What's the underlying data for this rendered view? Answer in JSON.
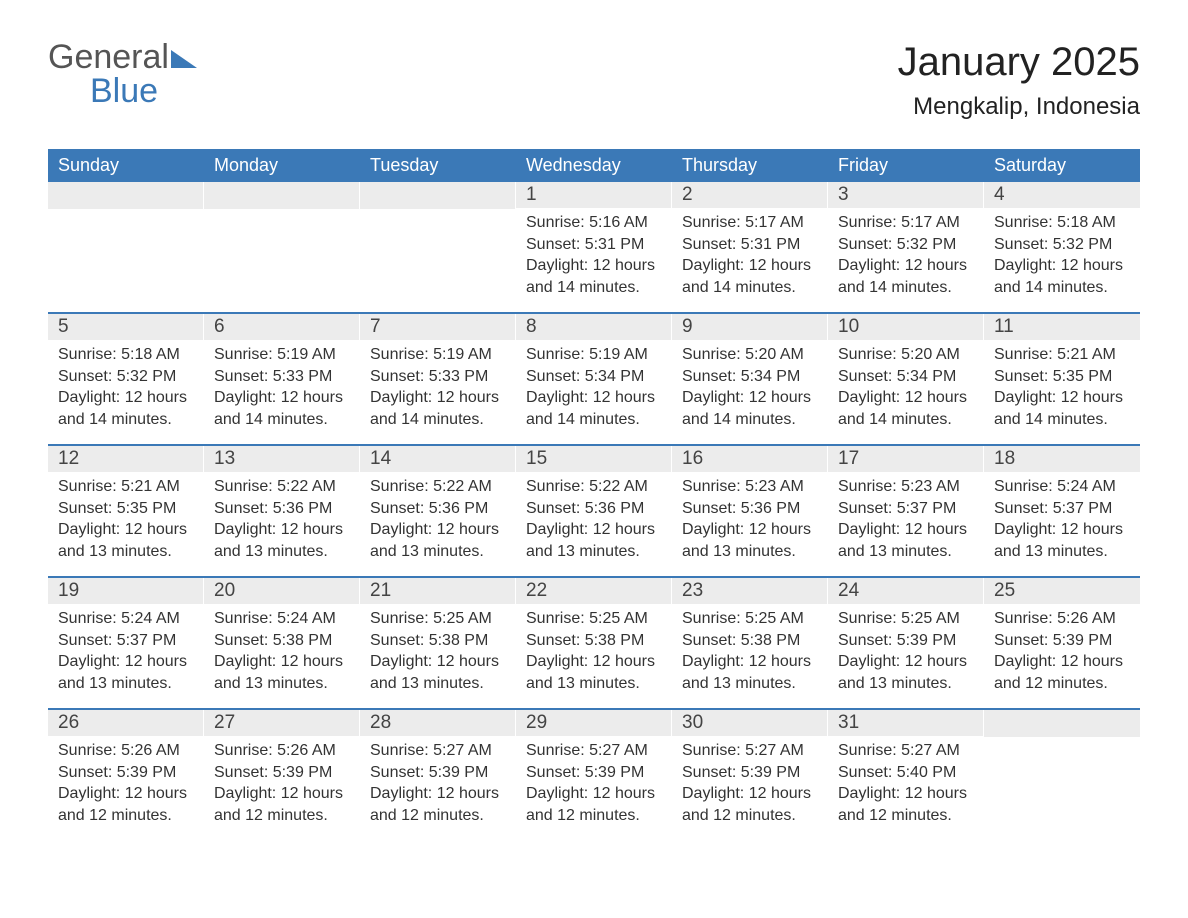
{
  "brand": {
    "line1": "General",
    "line2": "Blue"
  },
  "title": {
    "month": "January 2025",
    "location": "Mengkalip, Indonesia"
  },
  "colors": {
    "header_bg": "#3b79b7",
    "header_text": "#ffffff",
    "daynum_bg": "#ececec",
    "row_divider": "#3b79b7",
    "text": "#333333",
    "page_bg": "#ffffff"
  },
  "typography": {
    "title_fontsize": 40,
    "location_fontsize": 24,
    "dayheader_fontsize": 18,
    "daynum_fontsize": 19,
    "body_fontsize": 16
  },
  "layout": {
    "columns": 7,
    "rows": 5
  },
  "day_headers": [
    "Sunday",
    "Monday",
    "Tuesday",
    "Wednesday",
    "Thursday",
    "Friday",
    "Saturday"
  ],
  "weeks": [
    [
      {
        "empty": true
      },
      {
        "empty": true
      },
      {
        "empty": true
      },
      {
        "num": "1",
        "sunrise": "Sunrise: 5:16 AM",
        "sunset": "Sunset: 5:31 PM",
        "day1": "Daylight: 12 hours",
        "day2": "and 14 minutes."
      },
      {
        "num": "2",
        "sunrise": "Sunrise: 5:17 AM",
        "sunset": "Sunset: 5:31 PM",
        "day1": "Daylight: 12 hours",
        "day2": "and 14 minutes."
      },
      {
        "num": "3",
        "sunrise": "Sunrise: 5:17 AM",
        "sunset": "Sunset: 5:32 PM",
        "day1": "Daylight: 12 hours",
        "day2": "and 14 minutes."
      },
      {
        "num": "4",
        "sunrise": "Sunrise: 5:18 AM",
        "sunset": "Sunset: 5:32 PM",
        "day1": "Daylight: 12 hours",
        "day2": "and 14 minutes."
      }
    ],
    [
      {
        "num": "5",
        "sunrise": "Sunrise: 5:18 AM",
        "sunset": "Sunset: 5:32 PM",
        "day1": "Daylight: 12 hours",
        "day2": "and 14 minutes."
      },
      {
        "num": "6",
        "sunrise": "Sunrise: 5:19 AM",
        "sunset": "Sunset: 5:33 PM",
        "day1": "Daylight: 12 hours",
        "day2": "and 14 minutes."
      },
      {
        "num": "7",
        "sunrise": "Sunrise: 5:19 AM",
        "sunset": "Sunset: 5:33 PM",
        "day1": "Daylight: 12 hours",
        "day2": "and 14 minutes."
      },
      {
        "num": "8",
        "sunrise": "Sunrise: 5:19 AM",
        "sunset": "Sunset: 5:34 PM",
        "day1": "Daylight: 12 hours",
        "day2": "and 14 minutes."
      },
      {
        "num": "9",
        "sunrise": "Sunrise: 5:20 AM",
        "sunset": "Sunset: 5:34 PM",
        "day1": "Daylight: 12 hours",
        "day2": "and 14 minutes."
      },
      {
        "num": "10",
        "sunrise": "Sunrise: 5:20 AM",
        "sunset": "Sunset: 5:34 PM",
        "day1": "Daylight: 12 hours",
        "day2": "and 14 minutes."
      },
      {
        "num": "11",
        "sunrise": "Sunrise: 5:21 AM",
        "sunset": "Sunset: 5:35 PM",
        "day1": "Daylight: 12 hours",
        "day2": "and 14 minutes."
      }
    ],
    [
      {
        "num": "12",
        "sunrise": "Sunrise: 5:21 AM",
        "sunset": "Sunset: 5:35 PM",
        "day1": "Daylight: 12 hours",
        "day2": "and 13 minutes."
      },
      {
        "num": "13",
        "sunrise": "Sunrise: 5:22 AM",
        "sunset": "Sunset: 5:36 PM",
        "day1": "Daylight: 12 hours",
        "day2": "and 13 minutes."
      },
      {
        "num": "14",
        "sunrise": "Sunrise: 5:22 AM",
        "sunset": "Sunset: 5:36 PM",
        "day1": "Daylight: 12 hours",
        "day2": "and 13 minutes."
      },
      {
        "num": "15",
        "sunrise": "Sunrise: 5:22 AM",
        "sunset": "Sunset: 5:36 PM",
        "day1": "Daylight: 12 hours",
        "day2": "and 13 minutes."
      },
      {
        "num": "16",
        "sunrise": "Sunrise: 5:23 AM",
        "sunset": "Sunset: 5:36 PM",
        "day1": "Daylight: 12 hours",
        "day2": "and 13 minutes."
      },
      {
        "num": "17",
        "sunrise": "Sunrise: 5:23 AM",
        "sunset": "Sunset: 5:37 PM",
        "day1": "Daylight: 12 hours",
        "day2": "and 13 minutes."
      },
      {
        "num": "18",
        "sunrise": "Sunrise: 5:24 AM",
        "sunset": "Sunset: 5:37 PM",
        "day1": "Daylight: 12 hours",
        "day2": "and 13 minutes."
      }
    ],
    [
      {
        "num": "19",
        "sunrise": "Sunrise: 5:24 AM",
        "sunset": "Sunset: 5:37 PM",
        "day1": "Daylight: 12 hours",
        "day2": "and 13 minutes."
      },
      {
        "num": "20",
        "sunrise": "Sunrise: 5:24 AM",
        "sunset": "Sunset: 5:38 PM",
        "day1": "Daylight: 12 hours",
        "day2": "and 13 minutes."
      },
      {
        "num": "21",
        "sunrise": "Sunrise: 5:25 AM",
        "sunset": "Sunset: 5:38 PM",
        "day1": "Daylight: 12 hours",
        "day2": "and 13 minutes."
      },
      {
        "num": "22",
        "sunrise": "Sunrise: 5:25 AM",
        "sunset": "Sunset: 5:38 PM",
        "day1": "Daylight: 12 hours",
        "day2": "and 13 minutes."
      },
      {
        "num": "23",
        "sunrise": "Sunrise: 5:25 AM",
        "sunset": "Sunset: 5:38 PM",
        "day1": "Daylight: 12 hours",
        "day2": "and 13 minutes."
      },
      {
        "num": "24",
        "sunrise": "Sunrise: 5:25 AM",
        "sunset": "Sunset: 5:39 PM",
        "day1": "Daylight: 12 hours",
        "day2": "and 13 minutes."
      },
      {
        "num": "25",
        "sunrise": "Sunrise: 5:26 AM",
        "sunset": "Sunset: 5:39 PM",
        "day1": "Daylight: 12 hours",
        "day2": "and 12 minutes."
      }
    ],
    [
      {
        "num": "26",
        "sunrise": "Sunrise: 5:26 AM",
        "sunset": "Sunset: 5:39 PM",
        "day1": "Daylight: 12 hours",
        "day2": "and 12 minutes."
      },
      {
        "num": "27",
        "sunrise": "Sunrise: 5:26 AM",
        "sunset": "Sunset: 5:39 PM",
        "day1": "Daylight: 12 hours",
        "day2": "and 12 minutes."
      },
      {
        "num": "28",
        "sunrise": "Sunrise: 5:27 AM",
        "sunset": "Sunset: 5:39 PM",
        "day1": "Daylight: 12 hours",
        "day2": "and 12 minutes."
      },
      {
        "num": "29",
        "sunrise": "Sunrise: 5:27 AM",
        "sunset": "Sunset: 5:39 PM",
        "day1": "Daylight: 12 hours",
        "day2": "and 12 minutes."
      },
      {
        "num": "30",
        "sunrise": "Sunrise: 5:27 AM",
        "sunset": "Sunset: 5:39 PM",
        "day1": "Daylight: 12 hours",
        "day2": "and 12 minutes."
      },
      {
        "num": "31",
        "sunrise": "Sunrise: 5:27 AM",
        "sunset": "Sunset: 5:40 PM",
        "day1": "Daylight: 12 hours",
        "day2": "and 12 minutes."
      },
      {
        "empty": true
      }
    ]
  ]
}
